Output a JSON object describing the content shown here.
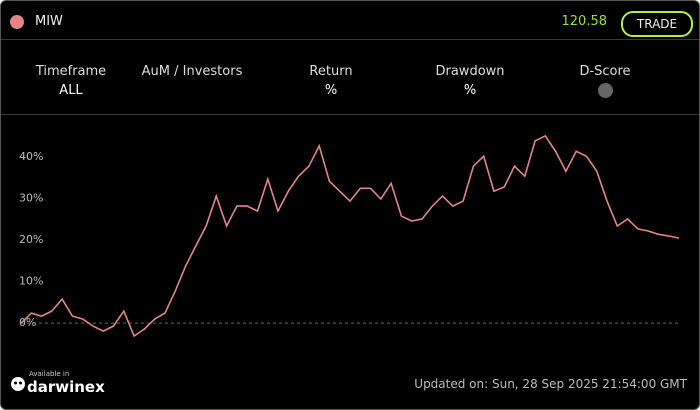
{
  "header": {
    "symbol": "MIW",
    "price": "120.58",
    "button": "TRADE"
  },
  "stats": [
    {
      "label": "Timeframe",
      "value": "ALL"
    },
    {
      "label": "AuM / Investors"
    },
    {
      "label": "Return",
      "value": "%"
    },
    {
      "label": "Drawdown",
      "value": "%"
    },
    {
      "label": "D-Score"
    }
  ],
  "chart_data": {
    "type": "line",
    "series": [
      {
        "name": "MIW",
        "color": "#e58585",
        "values": [
          0,
          2.4,
          1.7,
          2.9,
          5.8,
          1.7,
          1,
          -0.7,
          -1.9,
          -0.7,
          2.9,
          -3.1,
          -1.4,
          1,
          2.4,
          7.7,
          13.7,
          18.6,
          23.4,
          30.6,
          23.4,
          28.2,
          28.2,
          27,
          34.7,
          27,
          31.8,
          35.4,
          37.8,
          42.7,
          34.2,
          31.8,
          29.4,
          32.5,
          32.5,
          29.9,
          33.7,
          25.8,
          24.6,
          25.1,
          28.2,
          30.6,
          28.2,
          29.4,
          37.8,
          40.2,
          31.8,
          32.8,
          37.8,
          35.4,
          43.9,
          45.1,
          41.4,
          36.6,
          41.4,
          40.2,
          36.6,
          29.4,
          23.4,
          25.1,
          22.7,
          22.2,
          21.4,
          21,
          20.5
        ]
      }
    ],
    "ylim": [
      -5.5,
      48.7
    ],
    "yticks": [
      {
        "value": 0,
        "label": "0%"
      },
      {
        "value": 10,
        "label": "10%"
      },
      {
        "value": 20,
        "label": "20%"
      },
      {
        "value": 30,
        "label": "30%"
      },
      {
        "value": 40,
        "label": "40%"
      }
    ],
    "grid": false
  },
  "footer": {
    "brand_note": "Available in",
    "brand": "darwinex",
    "updated": "Updated on: Sun, 28 Sep 2025 21:54:00 GMT"
  }
}
